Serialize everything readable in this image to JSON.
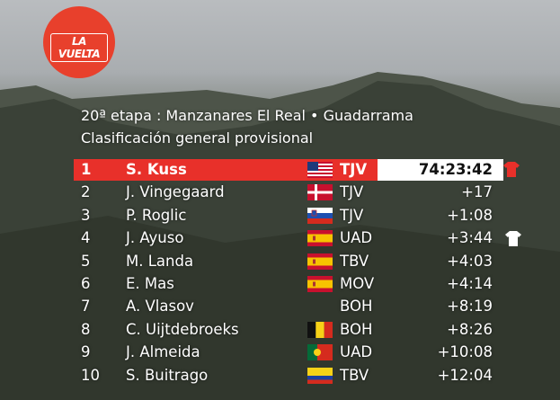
{
  "logo": "LA VUELTA",
  "header": {
    "stage": "20ª etapa : Manzanares El Real • Guadarrama",
    "title": "Clasificación general provisional"
  },
  "rows": [
    [
      "1",
      "S. Kuss",
      "TJV",
      "74:23:42"
    ],
    [
      "2",
      "J. Vingegaard",
      "TJV",
      "+17"
    ],
    [
      "3",
      "P. Roglic",
      "TJV",
      "+1:08"
    ],
    [
      "4",
      "J. Ayuso",
      "UAD",
      "+3:44"
    ],
    [
      "5",
      "M. Landa",
      "TBV",
      "+4:03"
    ],
    [
      "6",
      "E. Mas",
      "MOV",
      "+4:14"
    ],
    [
      "7",
      "A. Vlasov",
      "BOH",
      "+8:19"
    ],
    [
      "8",
      "C. Uijtdebroeks",
      "BOH",
      "+8:26"
    ],
    [
      "9",
      "J. Almeida",
      "UAD",
      "+10:08"
    ],
    [
      "10",
      "S. Buitrago",
      "TBV",
      "+12:04"
    ]
  ]
}
